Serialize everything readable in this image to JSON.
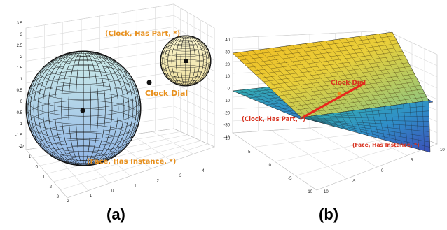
{
  "panel_a": {
    "caption": "(a)",
    "z_ticks": [
      "3.5",
      "3",
      "2.5",
      "2",
      "1.5",
      "1",
      "0.5",
      "0",
      "-0.5",
      "-1",
      "-1.5",
      "-2"
    ],
    "x_ticks": [
      "-2",
      "-1",
      "0",
      "1",
      "2",
      "3",
      "4"
    ],
    "y_ticks": [
      "-2",
      "-1",
      "0",
      "1",
      "2",
      "3"
    ],
    "label_top_sphere": "(Clock, Has Part, *)",
    "label_point": "Clock Dial",
    "label_bottom_sphere": "(Face, Has Instance, *)",
    "sphere_colors": {
      "left_top": "#cfeeea",
      "left_bottom": "#8fb4e6",
      "right_top": "#fbf6cf",
      "right_bottom": "#efe0a0"
    }
  },
  "panel_b": {
    "caption": "(b)",
    "z_ticks": [
      "40",
      "30",
      "20",
      "10",
      "0",
      "-10",
      "-20",
      "-30",
      "-40"
    ],
    "left_ticks": [
      "10",
      "5",
      "0",
      "-5",
      "-10"
    ],
    "right_ticks": [
      "10",
      "5",
      "0",
      "-5",
      "-10"
    ],
    "label_clock_dial": "Clock Dial",
    "label_clock_part": "(Clock, Has Part, *)",
    "label_face": "(Face, Has Instance, *)",
    "intersection_color": "#e8281c"
  }
}
